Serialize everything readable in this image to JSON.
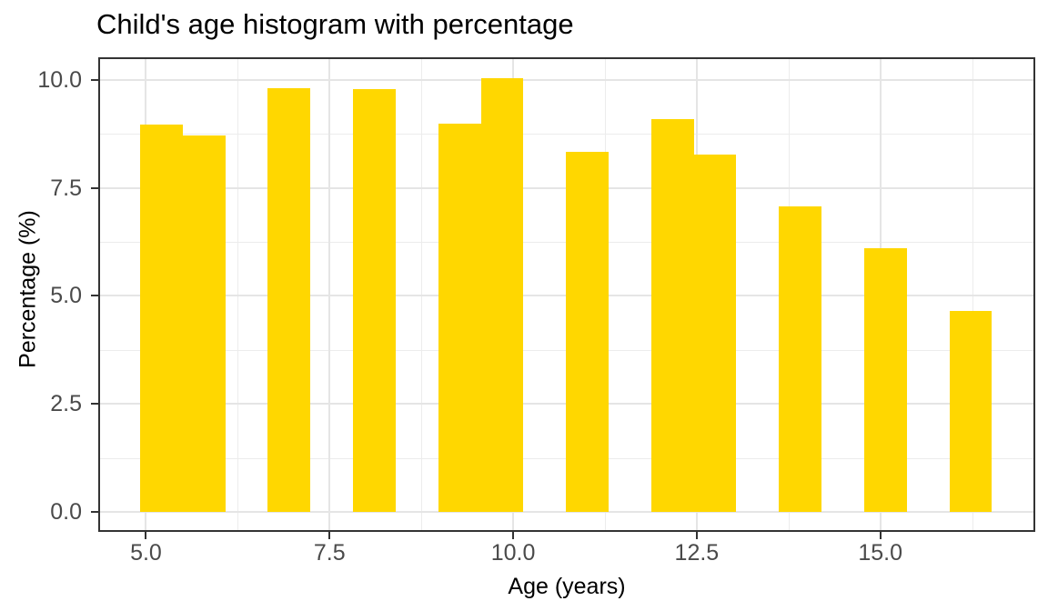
{
  "chart_data": {
    "type": "bar",
    "subtype": "histogram",
    "title": "Child's age histogram with percentage",
    "xlabel": "Age (years)",
    "ylabel": "Percentage (%)",
    "bin_width": 0.58,
    "bars": [
      {
        "x0": 4.92,
        "x1": 5.5,
        "pct": 8.97
      },
      {
        "x0": 5.5,
        "x1": 6.08,
        "pct": 8.71
      },
      {
        "x0": 6.66,
        "x1": 7.24,
        "pct": 9.8
      },
      {
        "x0": 7.82,
        "x1": 8.4,
        "pct": 9.78
      },
      {
        "x0": 8.98,
        "x1": 9.56,
        "pct": 8.99
      },
      {
        "x0": 9.56,
        "x1": 10.14,
        "pct": 10.03
      },
      {
        "x0": 10.72,
        "x1": 11.3,
        "pct": 8.33
      },
      {
        "x0": 11.88,
        "x1": 12.46,
        "pct": 9.08
      },
      {
        "x0": 12.46,
        "x1": 13.04,
        "pct": 8.27
      },
      {
        "x0": 13.62,
        "x1": 14.2,
        "pct": 7.08
      },
      {
        "x0": 14.78,
        "x1": 15.36,
        "pct": 6.11
      },
      {
        "x0": 15.94,
        "x1": 16.52,
        "pct": 4.66
      }
    ],
    "x_axis": {
      "lim": [
        4.35,
        17.11
      ],
      "ticks": [
        {
          "value": 5,
          "label": "5.0"
        },
        {
          "value": 7.5,
          "label": "7.5"
        },
        {
          "value": 10,
          "label": "10.0"
        },
        {
          "value": 12.5,
          "label": "12.5"
        },
        {
          "value": 15,
          "label": "15.0"
        }
      ],
      "minor_ticks": [
        6.25,
        8.75,
        11.25,
        13.75,
        16.25
      ]
    },
    "y_axis": {
      "lim": [
        -0.46,
        10.52
      ],
      "ticks": [
        {
          "value": 0,
          "label": "0.0"
        },
        {
          "value": 2.5,
          "label": "2.5"
        },
        {
          "value": 5,
          "label": "5.0"
        },
        {
          "value": 7.5,
          "label": "7.5"
        },
        {
          "value": 10,
          "label": "10.0"
        }
      ],
      "minor_ticks": [
        1.25,
        3.75,
        6.25,
        8.75
      ]
    },
    "grid": "major+minor",
    "legend": false,
    "colors": {
      "bar_fill": "#FFD700",
      "grid_major": "#E5E5E5",
      "grid_minor": "#ECECEC",
      "panel_border": "#333333",
      "tick_mark": "#333333",
      "tick_label": "#4A4A4A",
      "title": "#000000",
      "axis_title": "#000000",
      "background": "#FFFFFF"
    }
  }
}
